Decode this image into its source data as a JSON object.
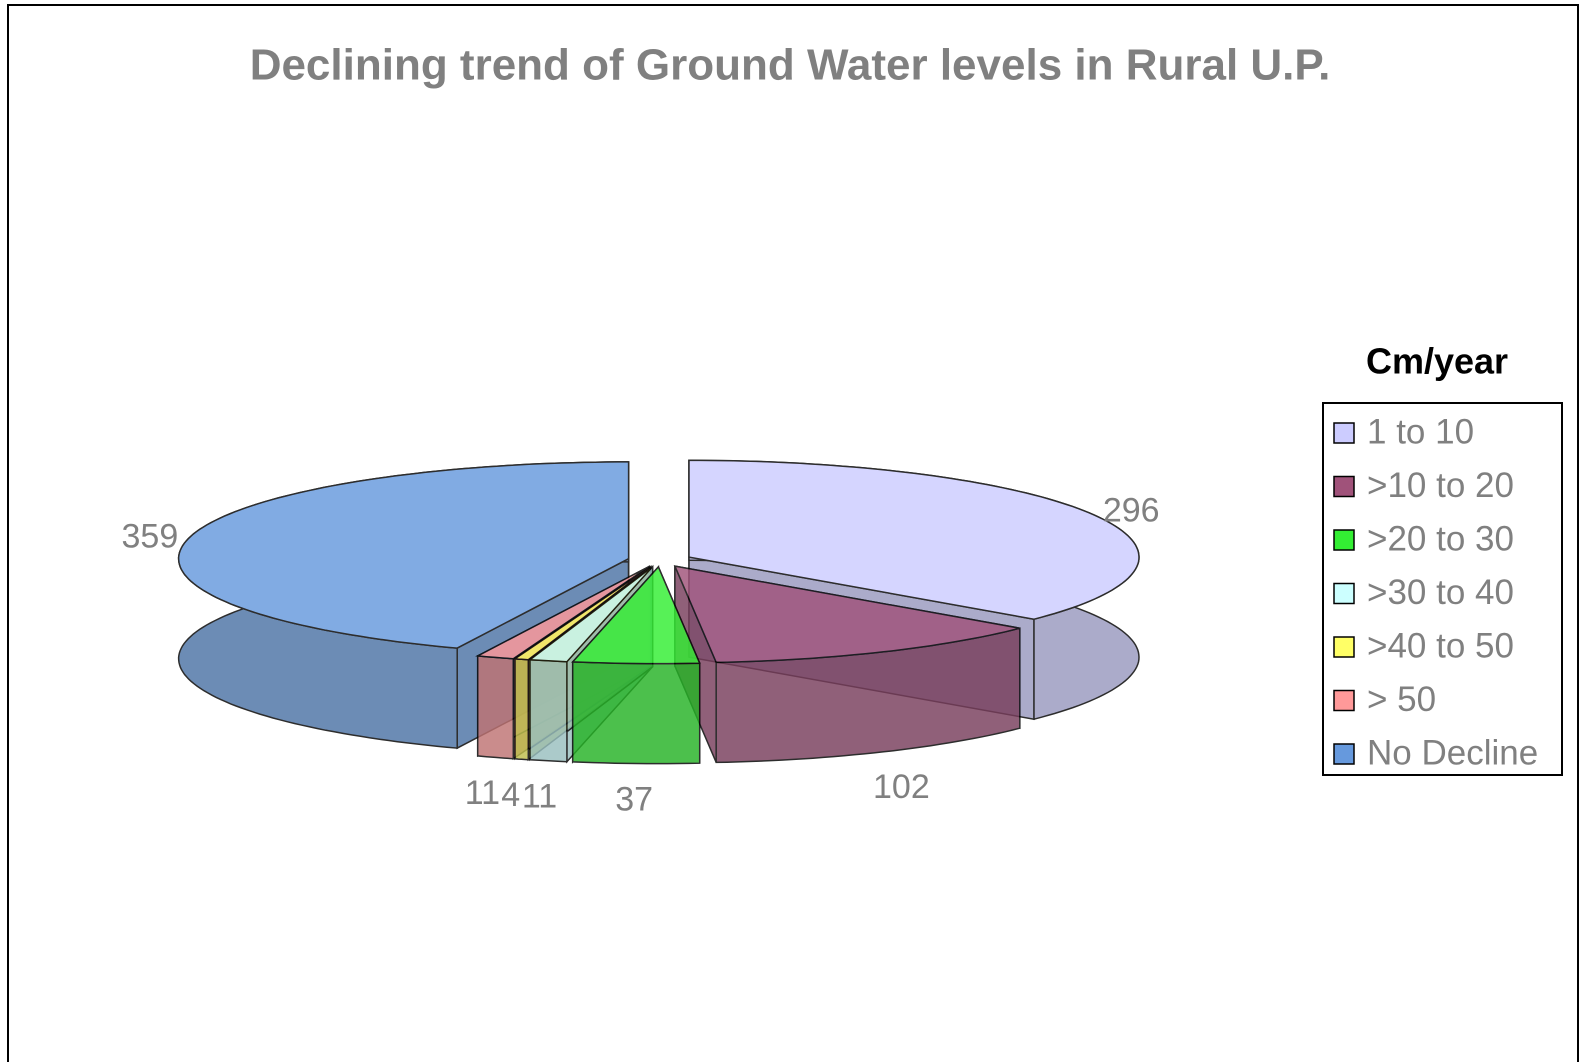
{
  "chart_data": {
    "type": "pie3d",
    "title": "Declining trend of Ground Water levels in Rural U.P.",
    "legend_title": "Cm/year",
    "categories": [
      "1 to 10",
      ">10 to 20",
      ">20 to 30",
      ">30 to 40",
      ">40 to 50",
      "> 50",
      "No Decline"
    ],
    "values": [
      296,
      102,
      37,
      11,
      4,
      11,
      359
    ],
    "colors": [
      "#ccccff",
      "#a0527a",
      "#33ee33",
      "#ccffff",
      "#ffff66",
      "#ff9999",
      "#6699dd"
    ],
    "legend": "right"
  }
}
